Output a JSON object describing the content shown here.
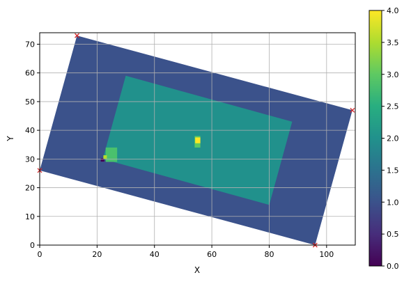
{
  "chart_data": {
    "type": "heatmap",
    "title": "",
    "xlabel": "X",
    "ylabel": "Y",
    "xlim": [
      0,
      110
    ],
    "ylim": [
      0,
      74
    ],
    "xticks": [
      0,
      20,
      40,
      60,
      80,
      100
    ],
    "yticks": [
      0,
      10,
      20,
      30,
      40,
      50,
      60,
      70
    ],
    "grid": true,
    "colormap": "viridis",
    "colorbar": {
      "min": 0.0,
      "max": 4.0,
      "ticks": [
        "0.0",
        "0.5",
        "1.0",
        "1.5",
        "2.0",
        "2.5",
        "3.0",
        "3.5",
        "4.0"
      ]
    },
    "regions": [
      {
        "value": 1.0,
        "color": "#3b528b",
        "polygon": [
          [
            13,
            73
          ],
          [
            109,
            47
          ],
          [
            96,
            0
          ],
          [
            0,
            26
          ]
        ]
      },
      {
        "value": 2.0,
        "color": "#21918c",
        "polygon": [
          [
            30,
            59
          ],
          [
            88,
            43
          ],
          [
            80,
            14
          ],
          [
            22,
            30
          ]
        ]
      },
      {
        "value": 2.8,
        "color": "#4ac16d",
        "polygon": [
          [
            23,
            34
          ],
          [
            27,
            34
          ],
          [
            27,
            29
          ],
          [
            23,
            29
          ]
        ]
      },
      {
        "value": 3.0,
        "color": "#5ec962",
        "polygon": [
          [
            54,
            38
          ],
          [
            56,
            38
          ],
          [
            56,
            34
          ],
          [
            54,
            34
          ]
        ]
      },
      {
        "value": 4.0,
        "color": "#fde725",
        "polygon": [
          [
            54.2,
            37.5
          ],
          [
            56,
            37.5
          ],
          [
            56,
            35.5
          ],
          [
            54.2,
            35.5
          ]
        ]
      },
      {
        "value": 0.0,
        "color": "#440154",
        "polygon": [
          [
            21.3,
            30.3
          ],
          [
            22.5,
            30.3
          ],
          [
            22.5,
            29.1
          ],
          [
            21.3,
            29.1
          ]
        ]
      },
      {
        "value": 3.5,
        "color": "#b5de2b",
        "polygon": [
          [
            22.2,
            31.3
          ],
          [
            23.4,
            31.3
          ],
          [
            23.4,
            30.1
          ],
          [
            22.2,
            30.1
          ]
        ]
      }
    ],
    "corner_markers": [
      {
        "x": 13,
        "y": 73
      },
      {
        "x": 109,
        "y": 47
      },
      {
        "x": 96,
        "y": 0
      },
      {
        "x": 0,
        "y": 26
      }
    ],
    "marker_color": "#d62728"
  }
}
